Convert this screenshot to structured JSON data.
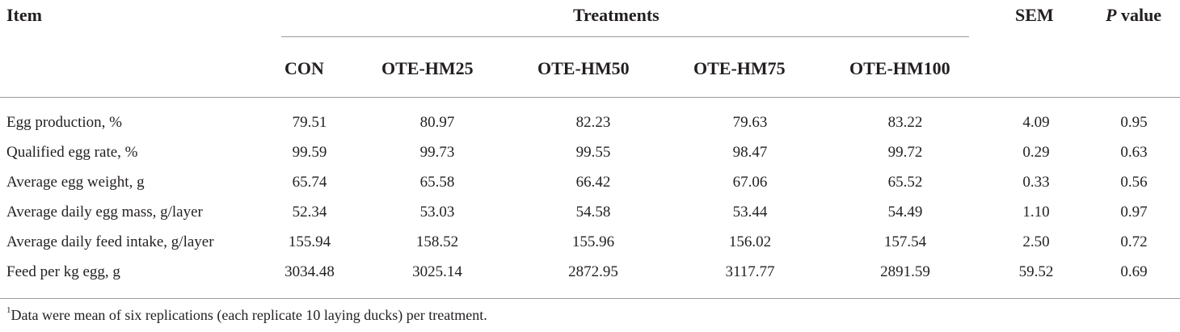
{
  "header": {
    "item": "Item",
    "treatments": "Treatments",
    "sem": "SEM",
    "p_italic": "P",
    "p_rest": " value",
    "columns": [
      "CON",
      "OTE-HM25",
      "OTE-HM50",
      "OTE-HM75",
      "OTE-HM100"
    ]
  },
  "rows": [
    {
      "item": "Egg production, %",
      "values": [
        "79.51",
        "80.97",
        "82.23",
        "79.63",
        "83.22"
      ],
      "sem": "4.09",
      "p": "0.95"
    },
    {
      "item": "Qualified egg rate, %",
      "values": [
        "99.59",
        "99.73",
        "99.55",
        "98.47",
        "99.72"
      ],
      "sem": "0.29",
      "p": "0.63"
    },
    {
      "item": "Average egg weight, g",
      "values": [
        "65.74",
        "65.58",
        "66.42",
        "67.06",
        "65.52"
      ],
      "sem": "0.33",
      "p": "0.56"
    },
    {
      "item": "Average daily egg mass, g/layer",
      "values": [
        "52.34",
        "53.03",
        "54.58",
        "53.44",
        "54.49"
      ],
      "sem": "1.10",
      "p": "0.97"
    },
    {
      "item": "Average daily feed intake, g/layer",
      "values": [
        "155.94",
        "158.52",
        "155.96",
        "156.02",
        "157.54"
      ],
      "sem": "2.50",
      "p": "0.72"
    },
    {
      "item": "Feed per kg egg, g",
      "values": [
        "3034.48",
        "3025.14",
        "2872.95",
        "3117.77",
        "2891.59"
      ],
      "sem": "59.52",
      "p": "0.69"
    }
  ],
  "footnote": {
    "marker": "1",
    "text": "Data were mean of six replications (each replicate 10 laying ducks) per treatment."
  }
}
